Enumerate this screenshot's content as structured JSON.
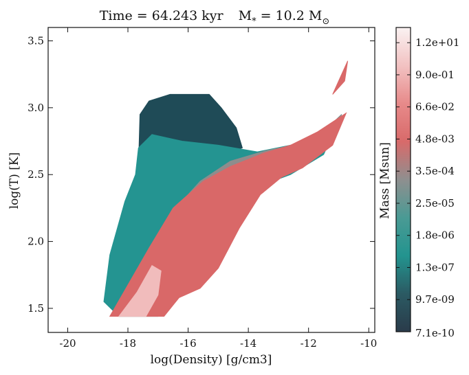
{
  "chart_data": {
    "type": "heatmap",
    "title": "Time = 64.243 kyr    M$_*$ = 10.2 M$_\\odot$",
    "title_parts": {
      "time_label": "Time = 64.243 kyr",
      "mass_prefix": "M",
      "mass_sub": "*",
      "mass_value": " = 10.2 M",
      "mass_unit_sub": "⊙"
    },
    "xlabel": "log(Density) [g/cm3]",
    "ylabel": "log(T) [K]",
    "xlim": [
      -20.65,
      -9.8
    ],
    "ylim": [
      1.32,
      3.6
    ],
    "xticks": [
      -20,
      -18,
      -16,
      -14,
      -12,
      -10
    ],
    "xtick_labels": [
      "-20",
      "-18",
      "-16",
      "-14",
      "-12",
      "-10"
    ],
    "yticks": [
      1.5,
      2.0,
      2.5,
      3.0,
      3.5
    ],
    "ytick_labels": [
      "1.5",
      "2.0",
      "2.5",
      "3.0",
      "3.5"
    ],
    "colorbar": {
      "label": "Mass [Msun]",
      "scale": "log",
      "tick_labels": [
        "7.1e-10",
        "9.7e-09",
        "1.3e-07",
        "1.8e-06",
        "2.5e-05",
        "3.5e-04",
        "4.8e-03",
        "6.6e-02",
        "9.0e-01",
        "1.2e+01"
      ],
      "colors": [
        "#2a3b4a",
        "#2b5a63",
        "#23948f",
        "#4a9a94",
        "#8f8f8f",
        "#d86a6a",
        "#e78a8a",
        "#f2c2c2",
        "#faf2f2"
      ]
    },
    "regions": [
      {
        "name": "hot low-density cloud",
        "color": "#1f4b57",
        "polygon": [
          [
            -17.65,
            2.55
          ],
          [
            -17.6,
            2.95
          ],
          [
            -17.3,
            3.05
          ],
          [
            -16.6,
            3.1
          ],
          [
            -16.0,
            3.1
          ],
          [
            -15.3,
            3.1
          ],
          [
            -14.9,
            3.0
          ],
          [
            -14.4,
            2.85
          ],
          [
            -14.2,
            2.7
          ],
          [
            -15.6,
            2.6
          ],
          [
            -16.8,
            2.65
          ],
          [
            -17.3,
            2.55
          ]
        ]
      },
      {
        "name": "main teal body",
        "color": "#249491",
        "polygon": [
          [
            -18.8,
            1.55
          ],
          [
            -18.6,
            1.9
          ],
          [
            -18.1,
            2.3
          ],
          [
            -17.75,
            2.5
          ],
          [
            -17.65,
            2.7
          ],
          [
            -17.2,
            2.8
          ],
          [
            -16.2,
            2.75
          ],
          [
            -15.0,
            2.72
          ],
          [
            -13.7,
            2.67
          ],
          [
            -12.6,
            2.72
          ],
          [
            -11.7,
            2.78
          ],
          [
            -10.9,
            2.95
          ],
          [
            -11.5,
            2.65
          ],
          [
            -12.6,
            2.5
          ],
          [
            -13.2,
            2.45
          ],
          [
            -14.1,
            2.25
          ],
          [
            -14.9,
            1.9
          ],
          [
            -15.5,
            1.7
          ],
          [
            -16.4,
            1.6
          ],
          [
            -17.0,
            1.44
          ],
          [
            -18.3,
            1.44
          ]
        ]
      },
      {
        "name": "grey transition band",
        "color": "#8e8c8c",
        "polygon": [
          [
            -17.3,
            1.85
          ],
          [
            -16.6,
            2.2
          ],
          [
            -15.6,
            2.45
          ],
          [
            -14.6,
            2.6
          ],
          [
            -13.4,
            2.68
          ],
          [
            -12.5,
            2.72
          ],
          [
            -11.6,
            2.8
          ],
          [
            -10.9,
            2.95
          ],
          [
            -11.4,
            2.7
          ],
          [
            -12.3,
            2.55
          ],
          [
            -13.0,
            2.5
          ],
          [
            -13.8,
            2.35
          ],
          [
            -14.4,
            2.15
          ],
          [
            -15.2,
            1.9
          ],
          [
            -16.0,
            1.7
          ],
          [
            -16.8,
            1.6
          ]
        ]
      },
      {
        "name": "dense cold red ridge",
        "color": "#d96868",
        "polygon": [
          [
            -18.6,
            1.44
          ],
          [
            -17.3,
            1.95
          ],
          [
            -16.5,
            2.25
          ],
          [
            -15.5,
            2.45
          ],
          [
            -14.6,
            2.56
          ],
          [
            -13.5,
            2.66
          ],
          [
            -12.6,
            2.72
          ],
          [
            -11.7,
            2.82
          ],
          [
            -10.75,
            2.96
          ],
          [
            -11.2,
            2.72
          ],
          [
            -12.2,
            2.55
          ],
          [
            -12.9,
            2.48
          ],
          [
            -13.6,
            2.35
          ],
          [
            -14.3,
            2.1
          ],
          [
            -15.0,
            1.8
          ],
          [
            -15.6,
            1.65
          ],
          [
            -16.3,
            1.58
          ],
          [
            -16.8,
            1.44
          ]
        ]
      },
      {
        "name": "peak mass core",
        "color": "#f1bcbc",
        "polygon": [
          [
            -18.3,
            1.44
          ],
          [
            -17.7,
            1.62
          ],
          [
            -17.2,
            1.82
          ],
          [
            -16.9,
            1.78
          ],
          [
            -17.0,
            1.6
          ],
          [
            -17.4,
            1.44
          ]
        ]
      },
      {
        "name": "high-density tail",
        "color": "#d96868",
        "polygon": [
          [
            -11.2,
            3.1
          ],
          [
            -10.9,
            3.25
          ],
          [
            -10.7,
            3.35
          ],
          [
            -10.8,
            3.2
          ]
        ]
      }
    ]
  }
}
